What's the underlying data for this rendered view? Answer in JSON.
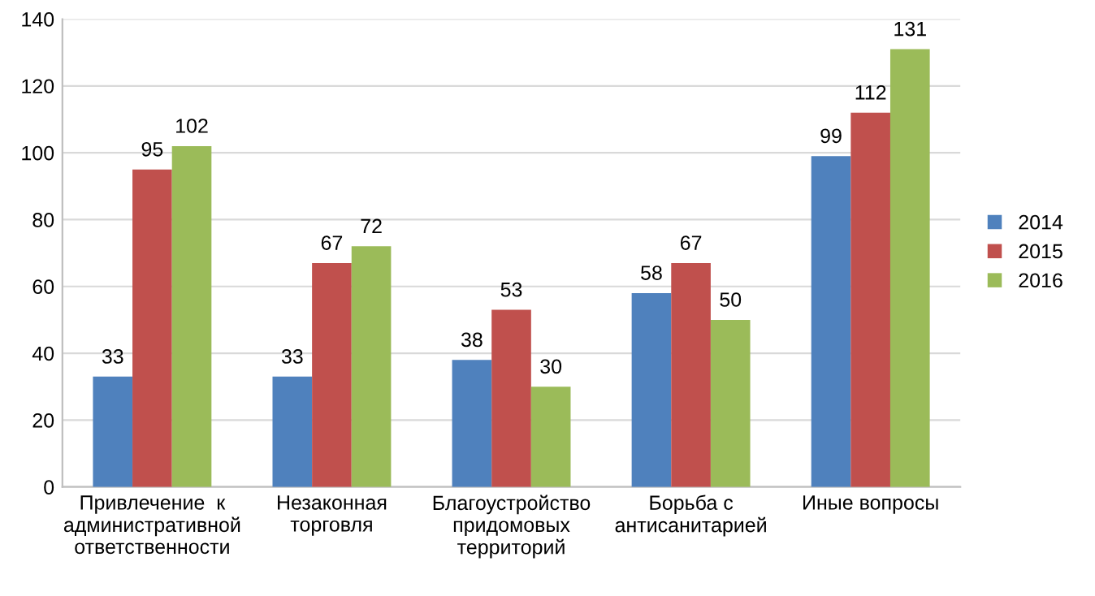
{
  "chart_data": {
    "type": "bar",
    "categories": [
      "Привлечение  к\nадминистративной\nответственности",
      "Незаконная\nторговля",
      "Благоустройство\nпридомовых\nтерриторий",
      "Борьба с\nантисанитарией",
      "Иные вопросы"
    ],
    "series": [
      {
        "name": "2014",
        "color": "#4f81bd",
        "values": [
          33,
          33,
          38,
          58,
          99
        ]
      },
      {
        "name": "2015",
        "color": "#c0504d",
        "values": [
          95,
          67,
          53,
          67,
          112
        ]
      },
      {
        "name": "2016",
        "color": "#9bbb59",
        "values": [
          102,
          72,
          30,
          50,
          131
        ]
      }
    ],
    "ylim": [
      0,
      140
    ],
    "yticks": [
      0,
      20,
      40,
      60,
      80,
      100,
      120,
      140
    ],
    "grid": "y",
    "legend": "right",
    "data_labels": true
  }
}
